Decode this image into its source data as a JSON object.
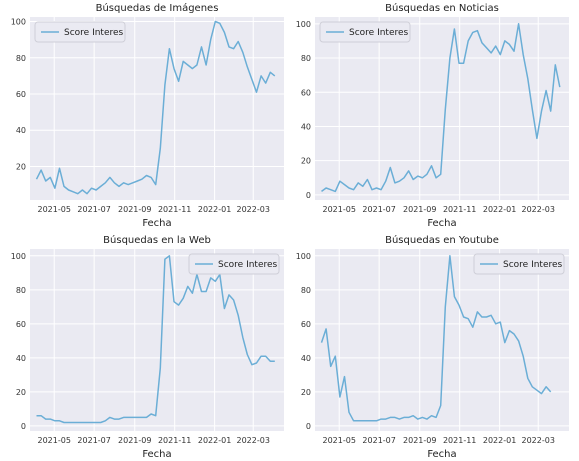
{
  "figure": {
    "line_color": "#6baed6",
    "panel_bg": "#eaeaf2",
    "grid_color": "#ffffff"
  },
  "chart_data": [
    {
      "type": "line",
      "title": "Búsquedas de Imágenes",
      "xlabel": "Fecha",
      "ylabel": "",
      "x_ticks": [
        "2021-05",
        "2021-07",
        "2021-09",
        "2021-11",
        "2022-01",
        "2022-03"
      ],
      "y_ticks": [
        20,
        40,
        60,
        80,
        100
      ],
      "ylim": [
        1.5,
        102.5
      ],
      "xlim": [
        "2021-03-25",
        "2022-04-17"
      ],
      "grid": true,
      "legend": "top-left",
      "series": [
        {
          "name": "Score Interes",
          "x": [
            "2021-04-04",
            "2021-04-11",
            "2021-04-18",
            "2021-04-25",
            "2021-05-02",
            "2021-05-09",
            "2021-05-16",
            "2021-05-23",
            "2021-05-30",
            "2021-06-06",
            "2021-06-13",
            "2021-06-20",
            "2021-06-27",
            "2021-07-04",
            "2021-07-11",
            "2021-07-18",
            "2021-07-25",
            "2021-08-01",
            "2021-08-08",
            "2021-08-15",
            "2021-08-22",
            "2021-08-29",
            "2021-09-05",
            "2021-09-12",
            "2021-09-19",
            "2021-09-26",
            "2021-10-03",
            "2021-10-10",
            "2021-10-17",
            "2021-10-24",
            "2021-10-31",
            "2021-11-07",
            "2021-11-14",
            "2021-11-21",
            "2021-11-28",
            "2021-12-05",
            "2021-12-12",
            "2021-12-19",
            "2021-12-26",
            "2022-01-02",
            "2022-01-09",
            "2022-01-16",
            "2022-01-23",
            "2022-01-30",
            "2022-02-06",
            "2022-02-13",
            "2022-02-20",
            "2022-02-27",
            "2022-03-06",
            "2022-03-13",
            "2022-03-20",
            "2022-03-27",
            "2022-04-03"
          ],
          "values": [
            13,
            18,
            12,
            14,
            8,
            19,
            9,
            7,
            6,
            5,
            7,
            5,
            8,
            7,
            9,
            11,
            14,
            11,
            9,
            11,
            10,
            11,
            12,
            13,
            15,
            14,
            10,
            30,
            65,
            85,
            74,
            67,
            78,
            76,
            74,
            76,
            86,
            76,
            90,
            100,
            99,
            94,
            86,
            85,
            89,
            83,
            75,
            68,
            61,
            70,
            66,
            72,
            70
          ]
        }
      ]
    },
    {
      "type": "line",
      "title": "Búsquedas en Noticias",
      "xlabel": "Fecha",
      "ylabel": "",
      "x_ticks": [
        "2021-05",
        "2021-07",
        "2021-09",
        "2021-11",
        "2022-01",
        "2022-03"
      ],
      "y_ticks": [
        0,
        20,
        40,
        60,
        80,
        100
      ],
      "ylim": [
        -3,
        104
      ],
      "xlim": [
        "2021-03-25",
        "2022-04-17"
      ],
      "grid": true,
      "legend": "top-left",
      "series": [
        {
          "name": "Score Interes",
          "x": [
            "2021-04-04",
            "2021-04-11",
            "2021-04-18",
            "2021-04-25",
            "2021-05-02",
            "2021-05-09",
            "2021-05-16",
            "2021-05-23",
            "2021-05-30",
            "2021-06-06",
            "2021-06-13",
            "2021-06-20",
            "2021-06-27",
            "2021-07-04",
            "2021-07-11",
            "2021-07-18",
            "2021-07-25",
            "2021-08-01",
            "2021-08-08",
            "2021-08-15",
            "2021-08-22",
            "2021-08-29",
            "2021-09-05",
            "2021-09-12",
            "2021-09-19",
            "2021-09-26",
            "2021-10-03",
            "2021-10-10",
            "2021-10-17",
            "2021-10-24",
            "2021-10-31",
            "2021-11-07",
            "2021-11-14",
            "2021-11-21",
            "2021-11-28",
            "2021-12-05",
            "2021-12-12",
            "2021-12-19",
            "2021-12-26",
            "2022-01-02",
            "2022-01-09",
            "2022-01-16",
            "2022-01-23",
            "2022-01-30",
            "2022-02-06",
            "2022-02-13",
            "2022-02-20",
            "2022-02-27",
            "2022-03-06",
            "2022-03-13",
            "2022-03-20",
            "2022-03-27",
            "2022-04-03"
          ],
          "values": [
            2,
            4,
            3,
            2,
            8,
            6,
            4,
            3,
            7,
            5,
            9,
            3,
            4,
            3,
            8,
            16,
            7,
            8,
            10,
            14,
            9,
            11,
            10,
            12,
            17,
            10,
            12,
            50,
            80,
            97,
            77,
            77,
            90,
            95,
            96,
            89,
            86,
            83,
            87,
            82,
            90,
            88,
            84,
            100,
            82,
            68,
            50,
            33,
            49,
            61,
            49,
            76,
            63
          ]
        }
      ]
    },
    {
      "type": "line",
      "title": "Búsquedas en la Web",
      "xlabel": "Fecha",
      "ylabel": "",
      "x_ticks": [
        "2021-05",
        "2021-07",
        "2021-09",
        "2021-11",
        "2022-01",
        "2022-03"
      ],
      "y_ticks": [
        0,
        20,
        40,
        60,
        80,
        100
      ],
      "ylim": [
        -3,
        104
      ],
      "xlim": [
        "2021-03-25",
        "2022-04-17"
      ],
      "grid": true,
      "legend": "top-right",
      "series": [
        {
          "name": "Score Interes",
          "x": [
            "2021-04-04",
            "2021-04-11",
            "2021-04-18",
            "2021-04-25",
            "2021-05-02",
            "2021-05-09",
            "2021-05-16",
            "2021-05-23",
            "2021-05-30",
            "2021-06-06",
            "2021-06-13",
            "2021-06-20",
            "2021-06-27",
            "2021-07-04",
            "2021-07-11",
            "2021-07-18",
            "2021-07-25",
            "2021-08-01",
            "2021-08-08",
            "2021-08-15",
            "2021-08-22",
            "2021-08-29",
            "2021-09-05",
            "2021-09-12",
            "2021-09-19",
            "2021-09-26",
            "2021-10-03",
            "2021-10-10",
            "2021-10-17",
            "2021-10-24",
            "2021-10-31",
            "2021-11-07",
            "2021-11-14",
            "2021-11-21",
            "2021-11-28",
            "2021-12-05",
            "2021-12-12",
            "2021-12-19",
            "2021-12-26",
            "2022-01-02",
            "2022-01-09",
            "2022-01-16",
            "2022-01-23",
            "2022-01-30",
            "2022-02-06",
            "2022-02-13",
            "2022-02-20",
            "2022-02-27",
            "2022-03-06",
            "2022-03-13",
            "2022-03-20",
            "2022-03-27",
            "2022-04-03"
          ],
          "values": [
            6,
            6,
            4,
            4,
            3,
            3,
            2,
            2,
            2,
            2,
            2,
            2,
            2,
            2,
            2,
            3,
            5,
            4,
            4,
            5,
            5,
            5,
            5,
            5,
            5,
            7,
            6,
            34,
            98,
            100,
            73,
            71,
            75,
            82,
            78,
            89,
            79,
            79,
            87,
            85,
            89,
            69,
            77,
            74,
            65,
            52,
            42,
            36,
            37,
            41,
            41,
            38,
            38
          ]
        }
      ]
    },
    {
      "type": "line",
      "title": "Búsquedas en Youtube",
      "xlabel": "Fecha",
      "ylabel": "",
      "x_ticks": [
        "2021-05",
        "2021-07",
        "2021-09",
        "2021-11",
        "2022-01",
        "2022-03"
      ],
      "y_ticks": [
        0,
        20,
        40,
        60,
        80,
        100
      ],
      "ylim": [
        -3,
        104
      ],
      "xlim": [
        "2021-03-25",
        "2022-04-17"
      ],
      "grid": true,
      "legend": "top-right",
      "series": [
        {
          "name": "Score Interes",
          "x": [
            "2021-04-04",
            "2021-04-11",
            "2021-04-18",
            "2021-04-25",
            "2021-05-02",
            "2021-05-09",
            "2021-05-16",
            "2021-05-23",
            "2021-05-30",
            "2021-06-06",
            "2021-06-13",
            "2021-06-20",
            "2021-06-27",
            "2021-07-04",
            "2021-07-11",
            "2021-07-18",
            "2021-07-25",
            "2021-08-01",
            "2021-08-08",
            "2021-08-15",
            "2021-08-22",
            "2021-08-29",
            "2021-09-05",
            "2021-09-12",
            "2021-09-19",
            "2021-09-26",
            "2021-10-03",
            "2021-10-10",
            "2021-10-17",
            "2021-10-24",
            "2021-10-31",
            "2021-11-07",
            "2021-11-14",
            "2021-11-21",
            "2021-11-28",
            "2021-12-05",
            "2021-12-12",
            "2021-12-19",
            "2021-12-26",
            "2022-01-02",
            "2022-01-09",
            "2022-01-16",
            "2022-01-23",
            "2022-01-30",
            "2022-02-06",
            "2022-02-13",
            "2022-02-20",
            "2022-02-27",
            "2022-03-06",
            "2022-03-13",
            "2022-03-20",
            "2022-03-27",
            "2022-04-03"
          ],
          "values": [
            49,
            57,
            35,
            41,
            17,
            29,
            8,
            3,
            3,
            3,
            3,
            3,
            3,
            4,
            4,
            5,
            5,
            4,
            5,
            5,
            6,
            4,
            5,
            4,
            6,
            5,
            12,
            70,
            100,
            76,
            71,
            64,
            63,
            58,
            67,
            64,
            64,
            65,
            60,
            61,
            49,
            56,
            54,
            50,
            41,
            28,
            23,
            21,
            19,
            23,
            20,
            null,
            null
          ]
        }
      ]
    }
  ]
}
